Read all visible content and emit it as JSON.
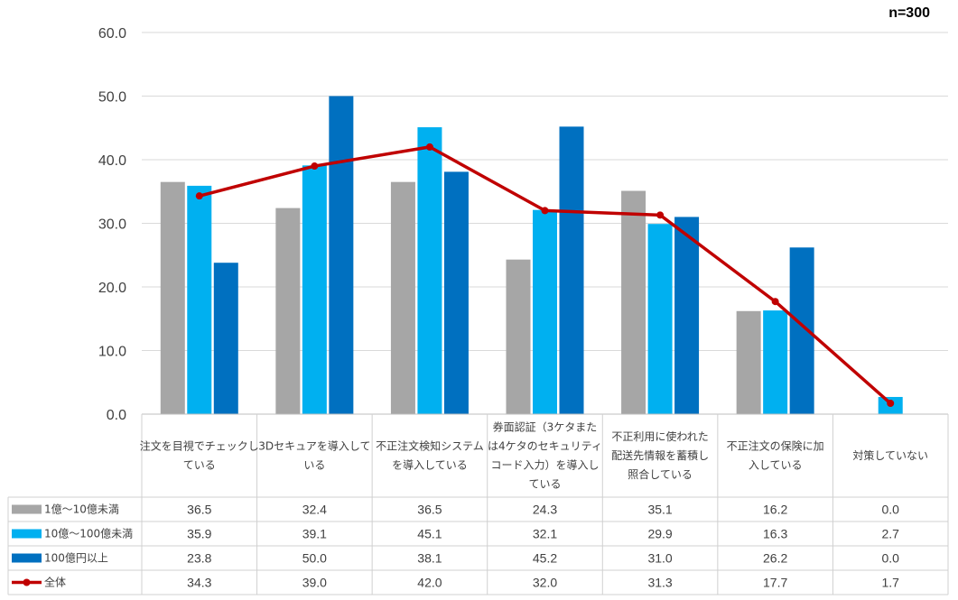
{
  "chart_data": {
    "type": "bar",
    "annotation": "n=300",
    "ylim": [
      0,
      60
    ],
    "yticks": [
      "0.0",
      "10.0",
      "20.0",
      "30.0",
      "40.0",
      "50.0",
      "60.0"
    ],
    "categories": [
      [
        "注文を目視でチェックし",
        "ている"
      ],
      [
        "3Dセキュアを導入して",
        "いる"
      ],
      [
        "不正注文検知システム",
        "を導入している"
      ],
      [
        "券面認証（3ケタまた",
        "は4ケタのセキュリティ",
        "コード入力）を導入し",
        "ている"
      ],
      [
        "不正利用に使われた",
        "配送先情報を蓄積し",
        "照合している"
      ],
      [
        "不正注文の保険に加",
        "入している"
      ],
      [
        "対策していない"
      ]
    ],
    "series": [
      {
        "name": "1億～10億未満",
        "kind": "bar",
        "color": "#a6a6a6",
        "values": [
          36.5,
          32.4,
          36.5,
          24.3,
          35.1,
          16.2,
          0.0
        ],
        "labels": [
          "36.5",
          "32.4",
          "36.5",
          "24.3",
          "35.1",
          "16.2",
          "0.0"
        ]
      },
      {
        "name": "10億～100億未満",
        "kind": "bar",
        "color": "#00b0f0",
        "values": [
          35.9,
          39.1,
          45.1,
          32.1,
          29.9,
          16.3,
          2.7
        ],
        "labels": [
          "35.9",
          "39.1",
          "45.1",
          "32.1",
          "29.9",
          "16.3",
          "2.7"
        ]
      },
      {
        "name": "100億円以上",
        "kind": "bar",
        "color": "#0070c0",
        "values": [
          23.8,
          50.0,
          38.1,
          45.2,
          31.0,
          26.2,
          0.0
        ],
        "labels": [
          "23.8",
          "50.0",
          "38.1",
          "45.2",
          "31.0",
          "26.2",
          "0.0"
        ]
      },
      {
        "name": "全体",
        "kind": "line",
        "color": "#c00000",
        "values": [
          34.3,
          39.0,
          42.0,
          32.0,
          31.3,
          17.7,
          1.7
        ],
        "labels": [
          "34.3",
          "39.0",
          "42.0",
          "32.0",
          "31.3",
          "17.7",
          "1.7"
        ]
      }
    ]
  }
}
